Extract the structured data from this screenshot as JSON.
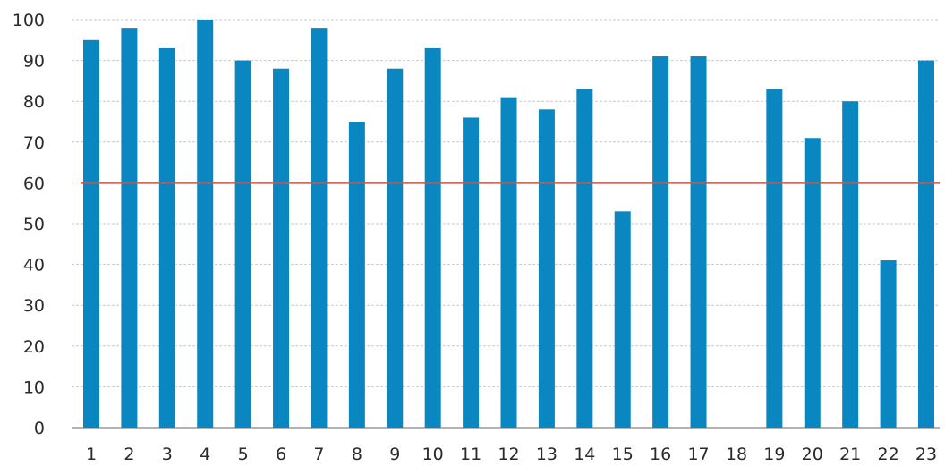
{
  "chart_data": {
    "type": "bar",
    "categories": [
      "1",
      "2",
      "3",
      "4",
      "5",
      "6",
      "7",
      "8",
      "9",
      "10",
      "11",
      "12",
      "13",
      "14",
      "15",
      "16",
      "17",
      "18",
      "19",
      "20",
      "21",
      "22",
      "23"
    ],
    "values": [
      95,
      98,
      93,
      100,
      90,
      88,
      98,
      75,
      88,
      93,
      76,
      81,
      78,
      83,
      53,
      91,
      91,
      null,
      83,
      71,
      80,
      41,
      90
    ],
    "ylim": [
      0,
      100
    ],
    "yticks": [
      0,
      10,
      20,
      30,
      40,
      50,
      60,
      70,
      80,
      90,
      100
    ],
    "ytick_labels": [
      "0",
      "10",
      "20",
      "30",
      "40",
      "50",
      "60",
      "70",
      "80",
      "90",
      "100"
    ],
    "reference_line": {
      "value": 60,
      "color": "#e0503a"
    },
    "bar_color": "#0a86c0",
    "grid": true,
    "title": "",
    "xlabel": "",
    "ylabel": ""
  }
}
